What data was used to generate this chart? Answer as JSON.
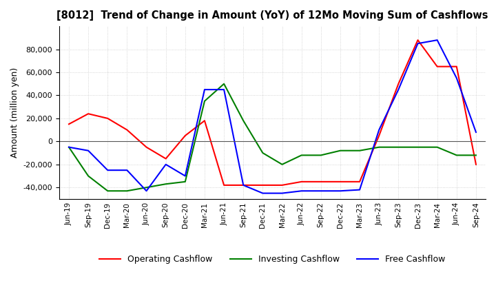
{
  "title": "[8012]  Trend of Change in Amount (YoY) of 12Mo Moving Sum of Cashflows",
  "ylabel": "Amount (million yen)",
  "background_color": "#ffffff",
  "grid_color": "#c8c8c8",
  "x_labels": [
    "Jun-19",
    "Sep-19",
    "Dec-19",
    "Mar-20",
    "Jun-20",
    "Sep-20",
    "Dec-20",
    "Mar-21",
    "Jun-21",
    "Sep-21",
    "Dec-21",
    "Mar-22",
    "Jun-22",
    "Sep-22",
    "Dec-22",
    "Mar-23",
    "Jun-23",
    "Sep-23",
    "Dec-23",
    "Mar-24",
    "Jun-24",
    "Sep-24"
  ],
  "operating": [
    15000,
    24000,
    20000,
    10000,
    -5000,
    -15000,
    5000,
    18000,
    -38000,
    -38000,
    -38000,
    -38000,
    -35000,
    -35000,
    -35000,
    -35000,
    5000,
    50000,
    88000,
    65000,
    65000,
    -20000
  ],
  "investing": [
    -5000,
    -30000,
    -43000,
    -43000,
    -40000,
    -37000,
    -35000,
    35000,
    50000,
    18000,
    -10000,
    -20000,
    -12000,
    -12000,
    -8000,
    -8000,
    -5000,
    -5000,
    -5000,
    -5000,
    -12000,
    -12000
  ],
  "free": [
    -5000,
    -8000,
    -25000,
    -25000,
    -43000,
    -20000,
    -30000,
    45000,
    45000,
    -38000,
    -45000,
    -45000,
    -43000,
    -43000,
    -43000,
    -42000,
    10000,
    45000,
    85000,
    88000,
    55000,
    8000
  ],
  "operating_color": "#ff0000",
  "investing_color": "#008000",
  "free_color": "#0000ff",
  "ylim": [
    -50000,
    100000
  ],
  "yticks": [
    -40000,
    -20000,
    0,
    20000,
    40000,
    60000,
    80000
  ]
}
